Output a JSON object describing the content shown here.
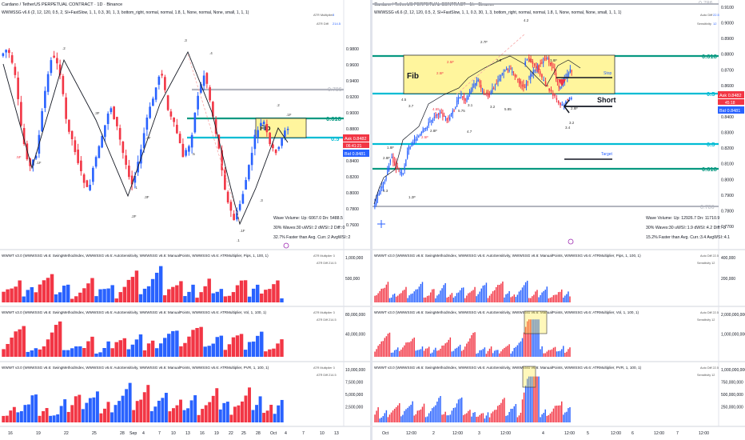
{
  "left": {
    "title": "Cardano / TetherUS PERPETUAL CONTRACT · 1D · Binance",
    "indicator": "WWWSSG v6.6 (2, 12, 120, 0.5, 2, SI+FastSlow, 1, 1, 0.3, 30, 1, 3, bottom_right, normal, normal, 1.8, 1, None, normal, None, small, 1, 1, 1)",
    "atr_multiplier_label": "ATR Multiplier",
    "atr_multiplier_value": "3",
    "atr_diff_label": "ATR Diff",
    "atr_diff_value": "214.5",
    "fib_label": "Fib",
    "fib_levels": [
      "0.786",
      "0.618",
      "0.5"
    ],
    "price_labels": [
      "0.9800",
      "0.9600",
      "0.9400",
      "0.9200",
      "0.9000",
      "0.8800",
      "0.8600",
      "0.8400",
      "0.8200",
      "0.8000",
      "0.7800",
      "0.7600"
    ],
    "ask_label": "Ask",
    "ask_value": "0.8482",
    "bid_label": "Bid",
    "bid_value": "0.8481",
    "countdown": "06:41:21",
    "wave_stats": [
      "Wave Volume: Up: 6067.0 Dn: 5488.5",
      "30% Waves:30 uWSI::2 dWSI::2 Diff::0",
      "32.7% Faster than Avg. Curr.:2 AvgWSI::2"
    ],
    "wave_labels": [
      ".1F",
      ".2",
      ".3F",
      ".1",
      ".2F",
      ".3",
      ".4",
      ".5",
      ".3F",
      ".1",
      ".2",
      ".1F",
      ".2F",
      ".5F",
      ".1F",
      ".3"
    ],
    "pane_titles": [
      "WWWT v3.0 (WWWSSG v6.6: SwingMethodIndex, WWWSSG v6.6: AutoSensitivity, WWWSSG v6.6: ManualPoints, WWWSSG v6.6: ATRMultiplier, Pips, 1, 100, 1)",
      "WWWT v3.0 (WWWSSG v6.6: SwingMethodIndex, WWWSSG v6.6: AutoSensitivity, WWWSSG v6.6: ManualPoints, WWWSSG v6.6: ATRMultiplier, Vol, 1, 100, 1)",
      "WWWT v3.0 (WWWSSG v6.6: SwingMethodIndex, WWWSSG v6.6: AutoSensitivity, WWWSSG v6.6: ManualPoints, WWWSSG v6.6: ATRMultiplier, PVR, 1, 100, 1)"
    ],
    "pane_scales": [
      [
        "1,000,000",
        "500,000"
      ],
      [
        "80,000,000",
        "40,000,000"
      ],
      [
        "10,000,000",
        "7,500,000",
        "5,000,000",
        "2,500,000"
      ]
    ],
    "dates": [
      "16",
      "19",
      "22",
      "25",
      "28",
      "Sep",
      "4",
      "7",
      "10",
      "13",
      "16",
      "19",
      "22",
      "25",
      "28",
      "Oct",
      "4",
      "7",
      "10",
      "13"
    ]
  },
  "right": {
    "title": "Cardano / TetherUS PERPETUAL CONTRACT · 1h · Binance",
    "indicator": "WWWSSG v6.6 (2, 12, 120, 0.5, 2, SI+FastSlow, 1, 1, 0.3, 30, 1, 3, bottom_right, normal, normal, 1.8, 1, None, normal, None, small, 1, 1, 1)",
    "auto_diff_label": "Auto Diff",
    "auto_diff_value": "22.5",
    "sensitivity_label": "Sensitivity",
    "sensitivity_value": "12",
    "fib_label": "Fib",
    "fib_levels_top": [
      "0.786",
      "0.618",
      "0.5"
    ],
    "fib_levels_bottom": [
      "0.5",
      "0.618",
      "0.786"
    ],
    "short_label": "Short",
    "stop_label": "Stop",
    "target_label": "Target",
    "price_labels": [
      "0.9100",
      "0.9000",
      "0.8900",
      "0.8800",
      "0.8700",
      "0.8600",
      "0.8500",
      "0.8400",
      "0.8300",
      "0.8200",
      "0.8100",
      "0.8000",
      "0.7900",
      "0.7800",
      "0.7700"
    ],
    "ask_label": "Ask",
    "ask_value": "0.8482",
    "bid_label": "Bid",
    "bid_value": "0.8481",
    "countdown": "45:18",
    "wave_stats": [
      "Wave Volume: Up: 12926.7 Dn: 11710.9",
      "30% Waves:30 uWSI::1.9 dWSI::4.2 Diff::-3",
      "15.2% Faster than Avg. Curr.:3.4 AvgWSI::4.1"
    ],
    "wave_labels": [
      "4.2",
      "2.7F",
      "2.9",
      "2.5F",
      "2.5F",
      "3.2",
      "3.1",
      "4.5",
      "3.7",
      "2.8F",
      "4.7",
      "2.5F",
      "1.8F",
      "2.8F",
      "4.3",
      "1.2F",
      "3.2",
      "3.4",
      "3.1",
      "3.8F",
      "4.65",
      "5.75",
      "5.85",
      "2.8F"
    ],
    "pane_titles": [
      "WWWT v3.0 (WWWSSG v6.6: SwingMethodIndex, WWWSSG v6.6: AutoSensitivity, WWWSSG v6.6: ManualPoints, WWWSSG v6.6: ATRMultiplier, Pips, 1, 100, 1)",
      "WWWT v3.0 (WWWSSG v6.6: SwingMethodIndex, WWWSSG v6.6: AutoSensitivity, WWWSSG v6.6: ManualPoints, WWWSSG v6.6: ATRMultiplier, Vol, 1, 100, 1)",
      "WWWT v3.0 (WWWSSG v6.6: SwingMethodIndex, WWWSSG v6.6: AutoSensitivity, WWWSSG v6.6: ManualPoints, WWWSSG v6.6: ATRMultiplier, PVR, 1, 100, 1)"
    ],
    "pane_scales": [
      [
        "400,000",
        "200,000"
      ],
      [
        "2,000,000,000",
        "1,000,000,000"
      ],
      [
        "1,000,000,000",
        "750,000,000",
        "500,000,000",
        "250,000,000"
      ]
    ],
    "dates": [
      "Oct",
      "12:00",
      "2",
      "12:00",
      "3",
      "12:00",
      "4",
      "12:00",
      "5",
      "12:00",
      "6",
      "12:00",
      "7",
      "12:00"
    ]
  },
  "colors": {
    "up": "#2962ff",
    "down": "#f23645",
    "fib_green": "#089981",
    "fib_teal": "#00bcd4",
    "fib_grey": "#b2b5be",
    "highlight": "#fff59d"
  }
}
